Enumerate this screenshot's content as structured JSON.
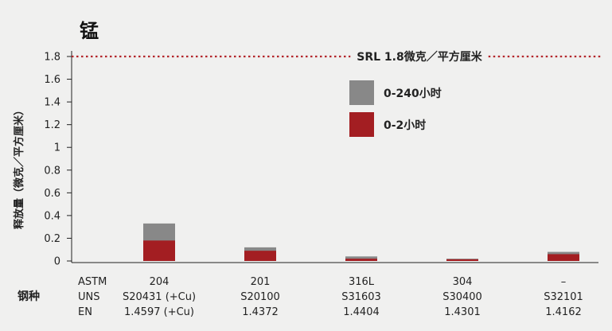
{
  "colors": {
    "gray": "#888888",
    "red": "#a31e22",
    "srl_line": "#b3262b",
    "axis": "#222222",
    "background": "#f0f0ef"
  },
  "chart_data": {
    "type": "bar",
    "title": "锰",
    "ylabel": "释放量（微克／平方厘米）",
    "ylim": [
      0,
      1.8
    ],
    "yticks": [
      "0",
      "0.2",
      "0.4",
      "0.6",
      "0.8",
      "1",
      "1.2",
      "1.4",
      "1.6",
      "1.8"
    ],
    "grid": false,
    "legend_position": "top-right",
    "reference_line": {
      "value": 1.8,
      "label": "SRL 1.8微克／平方厘米"
    },
    "row_group_label": "钢种",
    "row_labels": [
      "ASTM",
      "UNS",
      "EN"
    ],
    "categories": [
      {
        "astm": "204",
        "uns": "S20431 (+Cu)",
        "en": "1.4597 (+Cu)"
      },
      {
        "astm": "201",
        "uns": "S20100",
        "en": "1.4372"
      },
      {
        "astm": "316L",
        "uns": "S31603",
        "en": "1.4404"
      },
      {
        "astm": "304",
        "uns": "S30400",
        "en": "1.4301"
      },
      {
        "astm": "–",
        "uns": "S32101",
        "en": "1.4162"
      }
    ],
    "series": [
      {
        "name": "0-240小时",
        "color": "#888888",
        "values": [
          0.33,
          0.12,
          0.04,
          0.02,
          0.08
        ]
      },
      {
        "name": "0-2小时",
        "color": "#a31e22",
        "values": [
          0.18,
          0.09,
          0.02,
          0.015,
          0.06
        ]
      }
    ]
  }
}
